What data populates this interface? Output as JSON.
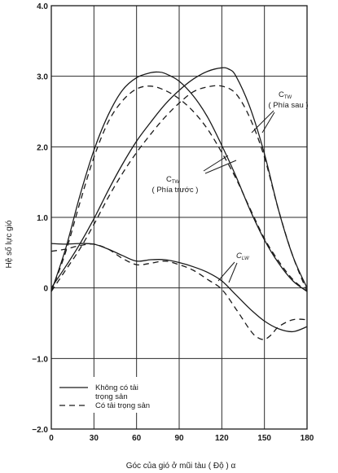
{
  "chart_data": {
    "type": "line",
    "title": "",
    "xlabel": "Góc của gió ở mũi tàu ( Độ ) α",
    "ylabel": "Hệ số lực gió",
    "xlim": [
      0,
      180
    ],
    "ylim": [
      -2.0,
      4.0
    ],
    "xticks": [
      0,
      30,
      60,
      90,
      120,
      150,
      180
    ],
    "xtick_labels": [
      "0",
      "30",
      "60",
      "90",
      "120",
      "150",
      "180"
    ],
    "yticks": [
      -2.0,
      -1.0,
      0,
      1.0,
      2.0,
      3.0,
      4.0
    ],
    "ytick_labels": [
      "−2.0",
      "−1.0",
      "0",
      "1.0",
      "2.0",
      "3.0",
      "4.0"
    ],
    "grid": true,
    "legend": {
      "placement": "bottom-left",
      "entries": [
        {
          "label_line1": "Không có tải",
          "label_line2": "trọng sản",
          "style": "solid"
        },
        {
          "label_line1": "Có tải trọng sản",
          "label_line2": "",
          "style": "dashed"
        }
      ]
    },
    "annotations": {
      "ctw_rear": {
        "main": "C",
        "sub": "TW",
        "paren": "( Phía sau )"
      },
      "ctw_front": {
        "main": "C",
        "sub": "TW",
        "paren": "( Phía trước )"
      },
      "clw": {
        "main": "C",
        "sub": "LW"
      }
    },
    "series": [
      {
        "group": "CTW front",
        "style": "solid",
        "color": "#1a1a1a",
        "x": [
          0,
          10,
          20,
          30,
          40,
          50,
          60,
          70,
          75,
          80,
          90,
          100,
          110,
          120,
          130,
          140,
          150,
          160,
          170,
          180
        ],
        "y": [
          -0.05,
          0.55,
          1.3,
          1.95,
          2.45,
          2.8,
          2.98,
          3.05,
          3.06,
          3.04,
          2.93,
          2.72,
          2.42,
          2.02,
          1.58,
          1.1,
          0.68,
          0.35,
          0.1,
          -0.05
        ]
      },
      {
        "group": "CTW front",
        "style": "dashed",
        "color": "#1a1a1a",
        "x": [
          0,
          10,
          20,
          30,
          40,
          50,
          60,
          70,
          80,
          90,
          100,
          110,
          120,
          130,
          140,
          150,
          160,
          170,
          180
        ],
        "y": [
          -0.05,
          0.5,
          1.2,
          1.85,
          2.35,
          2.65,
          2.82,
          2.86,
          2.8,
          2.68,
          2.5,
          2.25,
          1.92,
          1.55,
          1.12,
          0.7,
          0.38,
          0.12,
          -0.05
        ]
      },
      {
        "group": "CTW rear",
        "style": "solid",
        "color": "#1a1a1a",
        "x": [
          0,
          10,
          20,
          30,
          40,
          50,
          60,
          70,
          80,
          90,
          100,
          110,
          120,
          125,
          130,
          140,
          150,
          160,
          170,
          180
        ],
        "y": [
          0.0,
          0.3,
          0.62,
          0.98,
          1.38,
          1.75,
          2.08,
          2.35,
          2.6,
          2.8,
          2.96,
          3.07,
          3.12,
          3.1,
          3.0,
          2.55,
          1.9,
          1.1,
          0.45,
          0.0
        ]
      },
      {
        "group": "CTW rear",
        "style": "dashed",
        "color": "#1a1a1a",
        "x": [
          0,
          10,
          20,
          30,
          40,
          50,
          60,
          70,
          80,
          90,
          100,
          110,
          120,
          130,
          140,
          150,
          160,
          170,
          180
        ],
        "y": [
          -0.05,
          0.25,
          0.55,
          0.9,
          1.28,
          1.62,
          1.92,
          2.18,
          2.42,
          2.62,
          2.78,
          2.85,
          2.86,
          2.75,
          2.4,
          1.85,
          1.1,
          0.45,
          -0.05
        ]
      },
      {
        "group": "CLW",
        "style": "solid",
        "color": "#1a1a1a",
        "x": [
          0,
          10,
          20,
          30,
          40,
          50,
          60,
          70,
          80,
          90,
          100,
          110,
          120,
          130,
          140,
          150,
          160,
          170,
          180
        ],
        "y": [
          0.63,
          0.62,
          0.63,
          0.62,
          0.55,
          0.46,
          0.38,
          0.4,
          0.4,
          0.36,
          0.3,
          0.22,
          0.1,
          -0.1,
          -0.3,
          -0.47,
          -0.58,
          -0.62,
          -0.55
        ]
      },
      {
        "group": "CLW",
        "style": "dashed",
        "color": "#1a1a1a",
        "x": [
          0,
          10,
          20,
          30,
          40,
          50,
          60,
          70,
          80,
          90,
          100,
          110,
          120,
          130,
          140,
          145,
          150,
          155,
          160,
          170,
          180
        ],
        "y": [
          0.52,
          0.55,
          0.6,
          0.62,
          0.55,
          0.42,
          0.33,
          0.35,
          0.38,
          0.33,
          0.25,
          0.12,
          -0.02,
          -0.3,
          -0.6,
          -0.7,
          -0.73,
          -0.66,
          -0.55,
          -0.45,
          -0.45
        ]
      }
    ]
  }
}
